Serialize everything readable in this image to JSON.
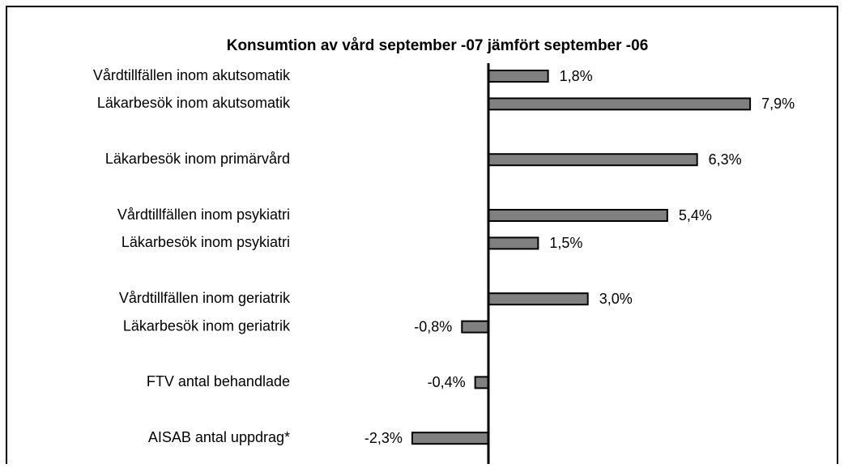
{
  "chart_data": {
    "type": "bar",
    "orientation": "horizontal",
    "title": "Konsumtion av vård september -07 jämfört september -06",
    "categories": [
      "Vårdtillfällen inom akutsomatik",
      "Läkarbesök  inom akutsomatik",
      null,
      "Läkarbesök inom primärvård",
      null,
      "Vårdtillfällen inom psykiatri",
      "Läkarbesök inom psykiatri",
      null,
      "Vårdtillfällen inom geriatrik",
      "Läkarbesök inom geriatrik",
      null,
      "FTV antal behandlade",
      null,
      "AISAB antal uppdrag*"
    ],
    "values": [
      1.8,
      7.9,
      null,
      6.3,
      null,
      5.4,
      1.5,
      null,
      3.0,
      -0.8,
      null,
      -0.4,
      null,
      -2.3
    ],
    "value_labels": [
      "1,8%",
      "7,9%",
      null,
      "6,3%",
      null,
      "5,4%",
      "1,5%",
      null,
      "3,0%",
      "-0,8%",
      null,
      "-0,4%",
      null,
      "-2,3%"
    ],
    "color": "#808080"
  }
}
